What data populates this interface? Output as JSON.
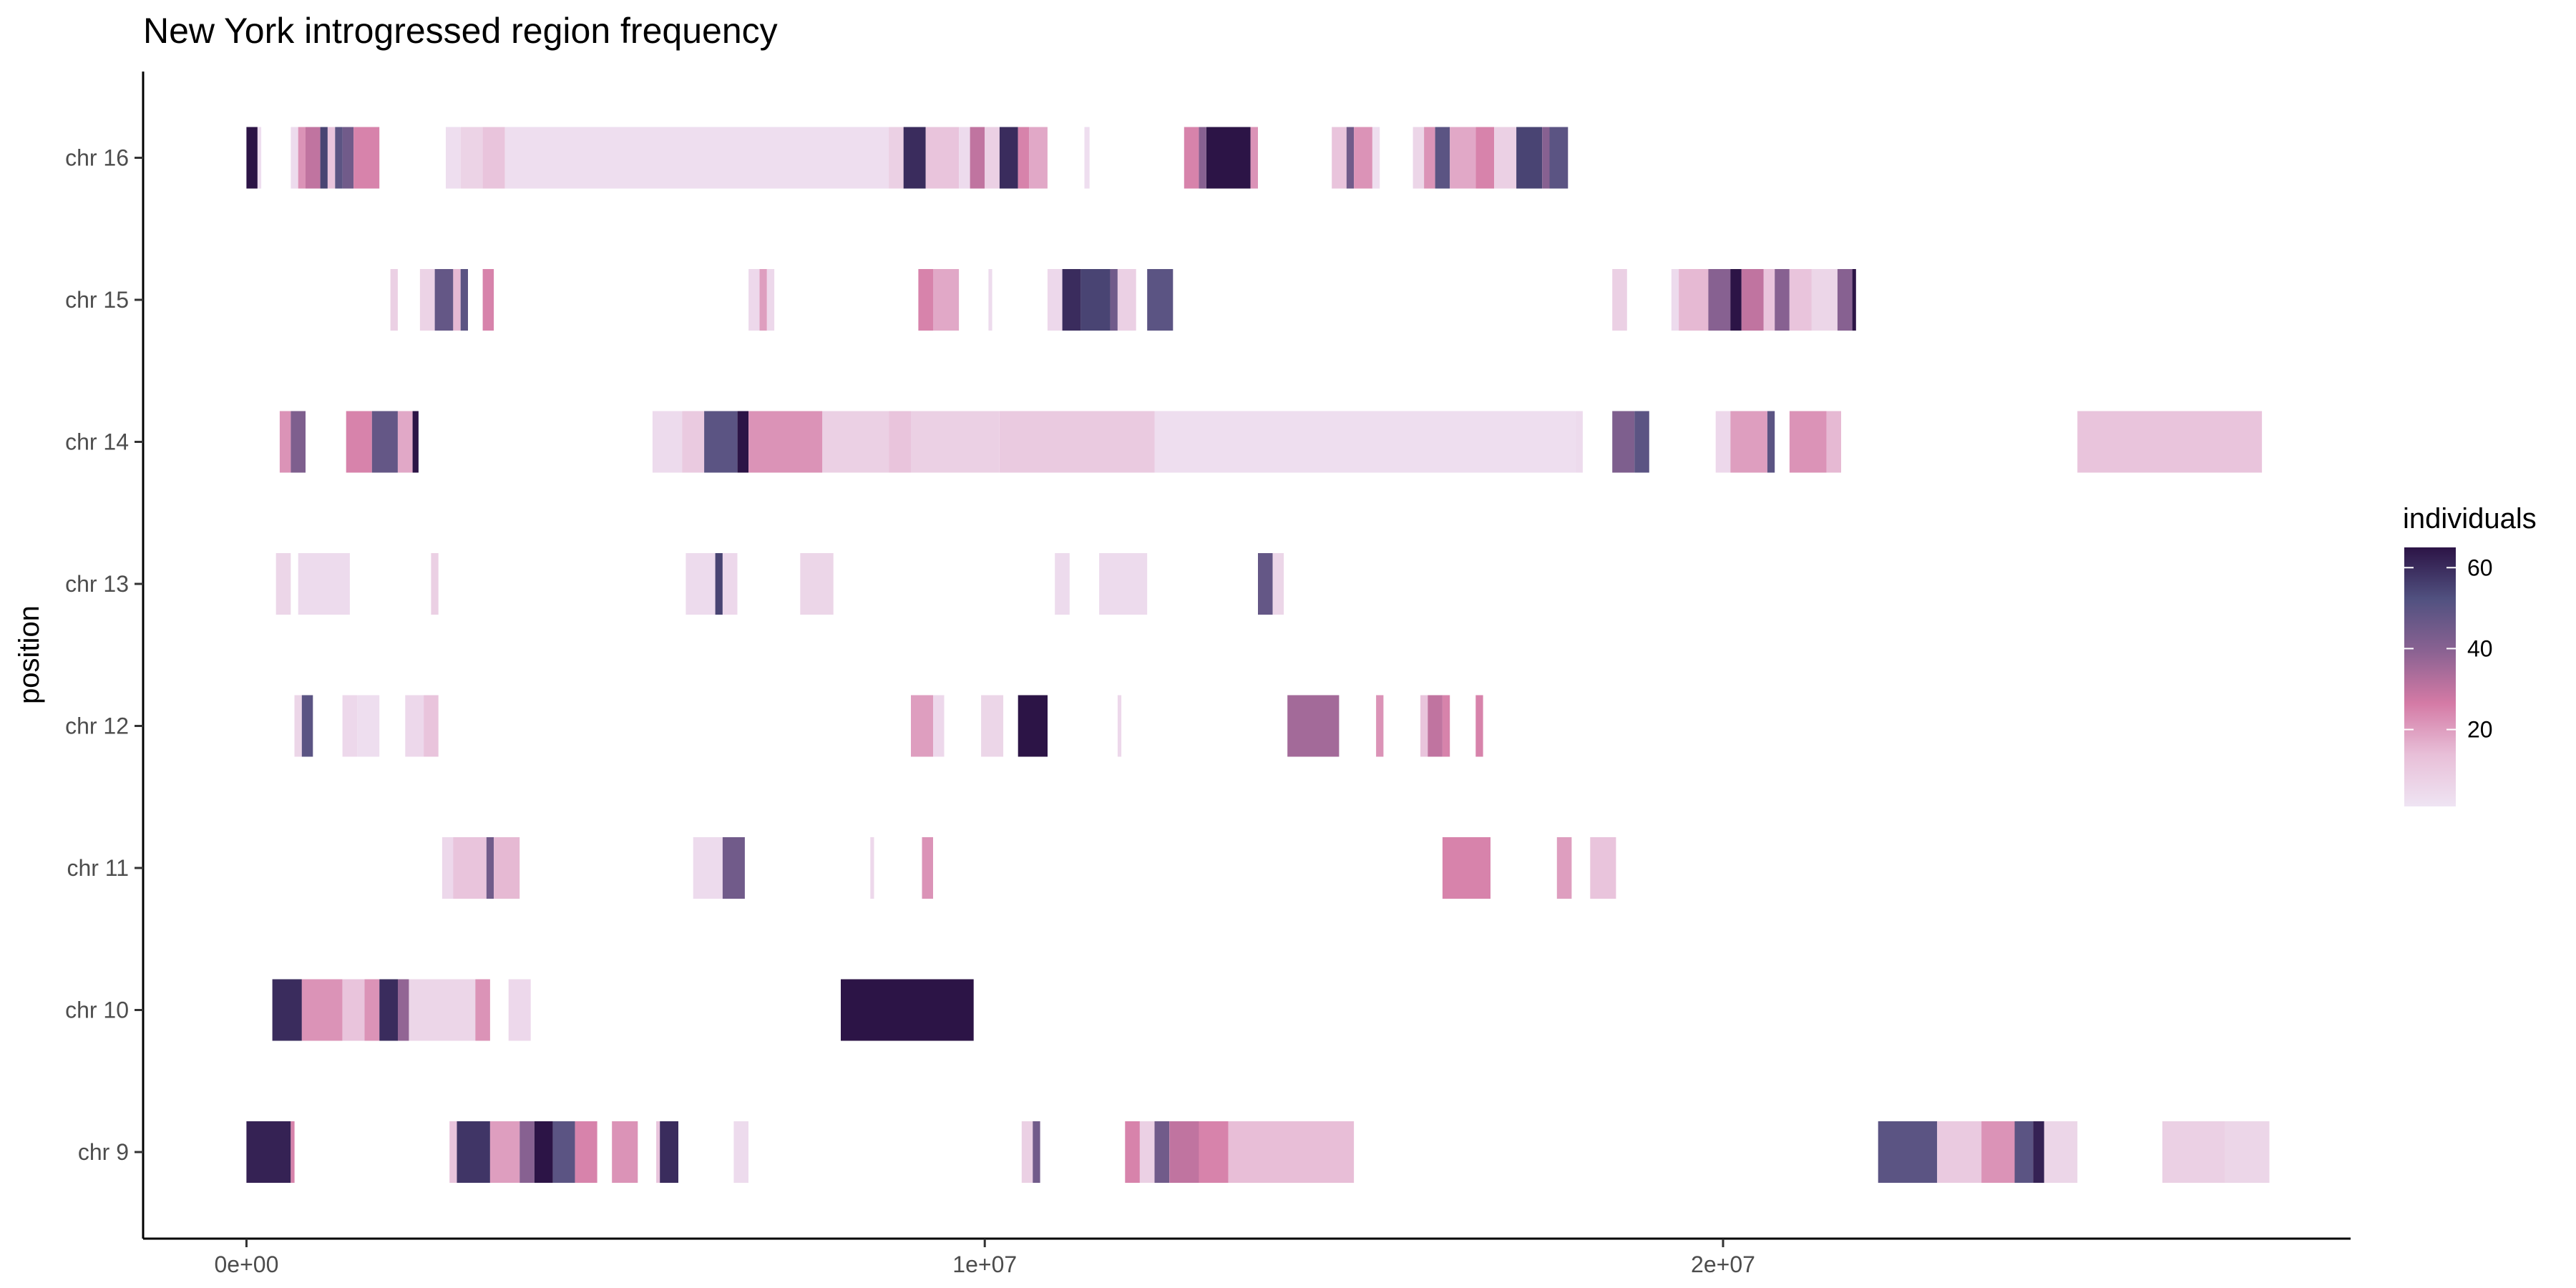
{
  "chart_data": {
    "type": "heatmap",
    "title": "New York introgressed region frequency",
    "xlabel": "",
    "ylabel": "position",
    "xlim": [
      -1400000,
      28500000
    ],
    "x_ticks": [
      {
        "value": 0,
        "label": "0e+00"
      },
      {
        "value": 10000000,
        "label": "1e+07"
      },
      {
        "value": 20000000,
        "label": "2e+07"
      }
    ],
    "categories": [
      "chr 9",
      "chr 10",
      "chr 11",
      "chr 12",
      "chr 13",
      "chr 14",
      "chr 15",
      "chr 16"
    ],
    "legend": {
      "title": "individuals",
      "position": "right",
      "range": [
        1,
        65
      ],
      "ticks": [
        20,
        40,
        60
      ],
      "colors": [
        "#efe4f3",
        "#e8bfd8",
        "#d47aa5",
        "#8a6292",
        "#515180",
        "#2c1446"
      ]
    },
    "grid": false,
    "series": [
      {
        "category": "chr 16",
        "segments": [
          [
            0,
            150000,
            65
          ],
          [
            150000,
            200000,
            3
          ],
          [
            600000,
            700000,
            4
          ],
          [
            700000,
            800000,
            22
          ],
          [
            800000,
            1000000,
            30
          ],
          [
            1000000,
            1100000,
            55
          ],
          [
            1100000,
            1200000,
            12
          ],
          [
            1200000,
            1300000,
            50
          ],
          [
            1300000,
            1450000,
            45
          ],
          [
            1450000,
            1800000,
            25
          ],
          [
            2700000,
            2900000,
            3
          ],
          [
            2900000,
            3200000,
            7
          ],
          [
            3200000,
            3500000,
            12
          ],
          [
            3500000,
            8700000,
            3
          ],
          [
            8700000,
            8900000,
            8
          ],
          [
            8900000,
            9200000,
            60
          ],
          [
            9200000,
            9650000,
            12
          ],
          [
            9650000,
            9800000,
            4
          ],
          [
            9800000,
            10000000,
            30
          ],
          [
            10000000,
            10200000,
            8
          ],
          [
            10200000,
            10450000,
            60
          ],
          [
            10450000,
            10600000,
            25
          ],
          [
            10600000,
            10850000,
            18
          ],
          [
            11350000,
            11420000,
            3
          ],
          [
            12700000,
            12900000,
            25
          ],
          [
            12900000,
            13000000,
            40
          ],
          [
            13000000,
            13600000,
            65
          ],
          [
            13600000,
            13700000,
            22
          ],
          [
            14700000,
            14900000,
            12
          ],
          [
            14900000,
            15000000,
            45
          ],
          [
            15000000,
            15250000,
            22
          ],
          [
            15250000,
            15350000,
            3
          ],
          [
            15800000,
            15950000,
            6
          ],
          [
            15950000,
            16100000,
            22
          ],
          [
            16100000,
            16300000,
            50
          ],
          [
            16300000,
            16650000,
            18
          ],
          [
            16650000,
            16900000,
            25
          ],
          [
            16900000,
            17200000,
            8
          ],
          [
            17200000,
            17550000,
            55
          ],
          [
            17550000,
            17650000,
            40
          ],
          [
            17650000,
            17900000,
            50
          ]
        ]
      },
      {
        "category": "chr 15",
        "segments": [
          [
            1950000,
            2050000,
            8
          ],
          [
            2350000,
            2550000,
            7
          ],
          [
            2550000,
            2800000,
            48
          ],
          [
            2800000,
            2900000,
            15
          ],
          [
            2900000,
            3000000,
            50
          ],
          [
            3200000,
            3350000,
            25
          ],
          [
            6800000,
            6950000,
            5
          ],
          [
            6950000,
            7050000,
            20
          ],
          [
            7050000,
            7150000,
            5
          ],
          [
            9100000,
            9300000,
            25
          ],
          [
            9300000,
            9650000,
            18
          ],
          [
            10050000,
            10100000,
            4
          ],
          [
            10850000,
            11050000,
            5
          ],
          [
            11050000,
            11300000,
            60
          ],
          [
            11300000,
            11700000,
            55
          ],
          [
            11700000,
            11800000,
            45
          ],
          [
            11800000,
            12050000,
            8
          ],
          [
            12200000,
            12550000,
            50
          ],
          [
            18500000,
            18700000,
            8
          ],
          [
            19300000,
            19400000,
            4
          ],
          [
            19400000,
            19800000,
            15
          ],
          [
            19800000,
            20100000,
            40
          ],
          [
            20100000,
            20250000,
            65
          ],
          [
            20250000,
            20550000,
            30
          ],
          [
            20550000,
            20700000,
            12
          ],
          [
            20700000,
            20900000,
            40
          ],
          [
            20900000,
            21200000,
            12
          ],
          [
            21200000,
            21550000,
            6
          ],
          [
            21550000,
            21750000,
            40
          ],
          [
            21750000,
            21800000,
            65
          ]
        ]
      },
      {
        "category": "chr 14",
        "segments": [
          [
            450000,
            600000,
            22
          ],
          [
            600000,
            800000,
            42
          ],
          [
            1350000,
            1700000,
            25
          ],
          [
            1700000,
            2050000,
            48
          ],
          [
            2050000,
            2250000,
            18
          ],
          [
            2250000,
            2330000,
            65
          ],
          [
            5500000,
            5900000,
            4
          ],
          [
            5900000,
            6200000,
            10
          ],
          [
            6200000,
            6650000,
            50
          ],
          [
            6650000,
            6800000,
            65
          ],
          [
            6800000,
            7800000,
            22
          ],
          [
            7800000,
            8700000,
            8
          ],
          [
            8700000,
            9000000,
            12
          ],
          [
            9000000,
            10200000,
            8
          ],
          [
            10200000,
            12300000,
            10
          ],
          [
            12300000,
            18000000,
            3
          ],
          [
            18000000,
            18100000,
            4
          ],
          [
            18500000,
            18800000,
            42
          ],
          [
            18800000,
            19000000,
            50
          ],
          [
            19900000,
            20100000,
            5
          ],
          [
            20100000,
            20600000,
            20
          ],
          [
            20600000,
            20700000,
            50
          ],
          [
            20900000,
            21400000,
            22
          ],
          [
            21400000,
            21600000,
            15
          ],
          [
            24800000,
            27300000,
            12
          ]
        ]
      },
      {
        "category": "chr 13",
        "segments": [
          [
            400000,
            600000,
            6
          ],
          [
            700000,
            1400000,
            4
          ],
          [
            2500000,
            2600000,
            8
          ],
          [
            5950000,
            6350000,
            4
          ],
          [
            6350000,
            6450000,
            55
          ],
          [
            6450000,
            6650000,
            5
          ],
          [
            7500000,
            7950000,
            6
          ],
          [
            10950000,
            11150000,
            4
          ],
          [
            11550000,
            12200000,
            4
          ],
          [
            13700000,
            13900000,
            48
          ],
          [
            13900000,
            14050000,
            6
          ]
        ]
      },
      {
        "category": "chr 12",
        "segments": [
          [
            650000,
            750000,
            6
          ],
          [
            750000,
            900000,
            50
          ],
          [
            1300000,
            1500000,
            5
          ],
          [
            1500000,
            1800000,
            3
          ],
          [
            2150000,
            2400000,
            5
          ],
          [
            2400000,
            2600000,
            12
          ],
          [
            9000000,
            9300000,
            20
          ],
          [
            9300000,
            9450000,
            5
          ],
          [
            9950000,
            10250000,
            6
          ],
          [
            10450000,
            10850000,
            65
          ],
          [
            11800000,
            11850000,
            5
          ],
          [
            14100000,
            14800000,
            35
          ],
          [
            15300000,
            15400000,
            22
          ],
          [
            15900000,
            16000000,
            12
          ],
          [
            16000000,
            16200000,
            30
          ],
          [
            16200000,
            16300000,
            25
          ],
          [
            16650000,
            16750000,
            25
          ]
        ]
      },
      {
        "category": "chr 11",
        "segments": [
          [
            2650000,
            2800000,
            5
          ],
          [
            2800000,
            3250000,
            12
          ],
          [
            3250000,
            3350000,
            45
          ],
          [
            3350000,
            3700000,
            15
          ],
          [
            6050000,
            6450000,
            4
          ],
          [
            6450000,
            6750000,
            45
          ],
          [
            8450000,
            8500000,
            5
          ],
          [
            9150000,
            9300000,
            22
          ],
          [
            16200000,
            16850000,
            25
          ],
          [
            17750000,
            17950000,
            20
          ],
          [
            18200000,
            18550000,
            12
          ]
        ]
      },
      {
        "category": "chr 10",
        "segments": [
          [
            350000,
            750000,
            60
          ],
          [
            750000,
            1300000,
            22
          ],
          [
            1300000,
            1600000,
            12
          ],
          [
            1600000,
            1800000,
            22
          ],
          [
            1800000,
            2050000,
            60
          ],
          [
            2050000,
            2200000,
            38
          ],
          [
            2200000,
            3100000,
            6
          ],
          [
            3100000,
            3300000,
            22
          ],
          [
            3550000,
            3850000,
            5
          ],
          [
            8050000,
            9850000,
            65
          ]
        ]
      },
      {
        "category": "chr 9",
        "segments": [
          [
            0,
            600000,
            62
          ],
          [
            600000,
            650000,
            25
          ],
          [
            2750000,
            2850000,
            12
          ],
          [
            2850000,
            3300000,
            58
          ],
          [
            3300000,
            3700000,
            20
          ],
          [
            3700000,
            3900000,
            40
          ],
          [
            3900000,
            4150000,
            65
          ],
          [
            4150000,
            4450000,
            50
          ],
          [
            4450000,
            4750000,
            25
          ],
          [
            4950000,
            5300000,
            22
          ],
          [
            5550000,
            5600000,
            12
          ],
          [
            5600000,
            5850000,
            60
          ],
          [
            6600000,
            6800000,
            4
          ],
          [
            10500000,
            10650000,
            8
          ],
          [
            10650000,
            10750000,
            45
          ],
          [
            11900000,
            12100000,
            25
          ],
          [
            12100000,
            12300000,
            8
          ],
          [
            12300000,
            12500000,
            45
          ],
          [
            12500000,
            12900000,
            30
          ],
          [
            12900000,
            13300000,
            25
          ],
          [
            13300000,
            15000000,
            14
          ],
          [
            22100000,
            22900000,
            50
          ],
          [
            22900000,
            23500000,
            10
          ],
          [
            23500000,
            23950000,
            22
          ],
          [
            23950000,
            24200000,
            50
          ],
          [
            24200000,
            24350000,
            62
          ],
          [
            24350000,
            24800000,
            6
          ],
          [
            25950000,
            26800000,
            8
          ],
          [
            26800000,
            27400000,
            6
          ]
        ]
      }
    ]
  }
}
